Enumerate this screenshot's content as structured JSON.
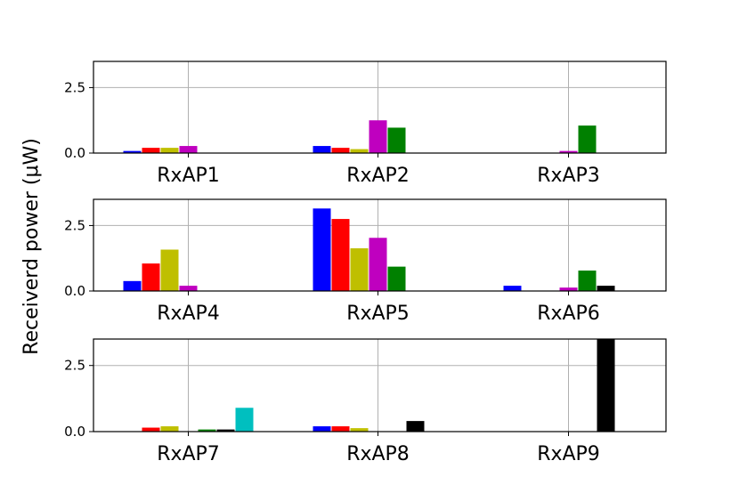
{
  "ylabel": "Receiverd power (μW)",
  "colors": [
    "#0000ff",
    "#ff0000",
    "#bfbf00",
    "#bf00bf",
    "#008000",
    "#000000",
    "#00bfbf"
  ],
  "chart_data": {
    "type": "bar",
    "ylabel": "Receiverd power (μW)",
    "ylim": [
      0,
      3.5
    ],
    "yticks": [
      "0.0",
      "2.5"
    ],
    "grid": true,
    "panels": [
      {
        "categories": [
          "RxAP1",
          "RxAP2",
          "RxAP3"
        ],
        "values": [
          [
            0.08,
            0.2,
            0.2,
            0.27,
            0,
            0,
            0
          ],
          [
            0.27,
            0.2,
            0.15,
            1.25,
            0.97,
            0,
            0
          ],
          [
            0,
            0,
            0,
            0.08,
            1.05,
            0,
            0
          ]
        ]
      },
      {
        "categories": [
          "RxAP4",
          "RxAP5",
          "RxAP6"
        ],
        "values": [
          [
            0.38,
            1.05,
            1.58,
            0.2,
            0,
            0,
            0
          ],
          [
            3.15,
            2.75,
            1.63,
            2.03,
            0.93,
            0,
            0
          ],
          [
            0.2,
            0,
            0,
            0.13,
            0.78,
            0.2,
            0
          ]
        ]
      },
      {
        "categories": [
          "RxAP7",
          "RxAP8",
          "RxAP9"
        ],
        "values": [
          [
            0,
            0.15,
            0.2,
            0,
            0.08,
            0.08,
            0.9
          ],
          [
            0.2,
            0.2,
            0.13,
            0,
            0,
            0.4,
            0
          ],
          [
            0,
            0,
            0,
            0,
            0,
            3.55,
            0
          ]
        ]
      }
    ]
  }
}
